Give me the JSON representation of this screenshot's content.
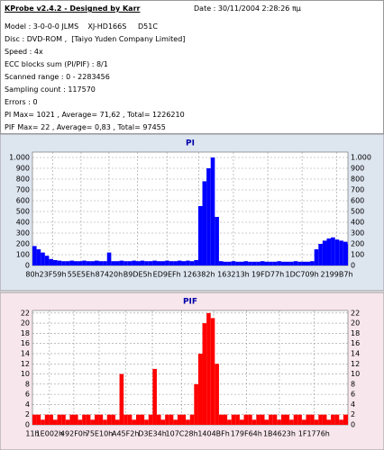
{
  "header": {
    "title": "KProbe v2.4.2 - Designed by Karr",
    "date": "Date : 30/11/2004 2:28:26 πμ"
  },
  "info": [
    "Model : 3-0-0-0 JLMS    XJ-HD166S     D51C",
    "Disc : DVD-ROM ,  [Taiyo Yuden Company Limited]",
    "Speed : 4x",
    "ECC blocks sum (PI/PIF) : 8/1",
    "Scanned range : 0 - 2283456",
    "Sampling count : 117570",
    "Errors : 0",
    "PI Max= 1021 , Average= 71,62 , Total= 1226210",
    "PIF Max= 22 , Average= 0,83 , Total= 97455"
  ],
  "chart_data": [
    {
      "type": "bar",
      "title": "PI",
      "color": "#0000ff",
      "grid": true,
      "x": [
        0,
        30000,
        60000,
        90000,
        120000,
        150000,
        180000,
        210000,
        240000,
        270000,
        300000,
        330000,
        360000,
        390000,
        420000,
        450000,
        480000,
        510000,
        540000,
        570000,
        600000,
        630000,
        660000,
        690000,
        720000,
        750000,
        780000,
        810000,
        840000,
        870000,
        900000,
        930000,
        960000,
        990000,
        1020000,
        1050000,
        1080000,
        1110000,
        1140000,
        1170000,
        1200000,
        1230000,
        1260000,
        1290000,
        1320000,
        1350000,
        1380000,
        1410000,
        1440000,
        1470000,
        1500000,
        1530000,
        1560000,
        1590000,
        1620000,
        1650000,
        1680000,
        1710000,
        1740000,
        1770000,
        1800000,
        1830000,
        1860000,
        1890000,
        1920000,
        1950000,
        1980000,
        2010000,
        2040000,
        2070000,
        2100000,
        2130000,
        2160000,
        2190000,
        2220000,
        2250000,
        2280000
      ],
      "values": [
        180,
        150,
        120,
        90,
        60,
        50,
        45,
        40,
        40,
        45,
        40,
        40,
        45,
        40,
        40,
        45,
        40,
        40,
        120,
        40,
        40,
        45,
        40,
        40,
        45,
        40,
        45,
        40,
        40,
        45,
        40,
        40,
        45,
        40,
        40,
        45,
        40,
        45,
        40,
        50,
        550,
        780,
        900,
        1000,
        450,
        40,
        35,
        35,
        40,
        35,
        35,
        40,
        35,
        35,
        35,
        40,
        35,
        35,
        35,
        40,
        35,
        35,
        35,
        40,
        35,
        35,
        35,
        40,
        150,
        200,
        230,
        250,
        260,
        240,
        230,
        220,
        200
      ],
      "xlim": [
        0,
        2283456
      ],
      "xticks": [
        {
          "value": 128,
          "label": "80h"
        },
        {
          "value": 147289,
          "label": "23F59h"
        },
        {
          "value": 351838,
          "label": "55E5Eh"
        },
        {
          "value": 554016,
          "label": "87420h"
        },
        {
          "value": 761317,
          "label": "B9DE5h"
        },
        {
          "value": 973295,
          "label": "ED9EFh"
        },
        {
          "value": 1205122,
          "label": "126382h"
        },
        {
          "value": 1454611,
          "label": "163213h"
        },
        {
          "value": 1703287,
          "label": "19FD77h"
        },
        {
          "value": 1951497,
          "label": "1DC709h"
        },
        {
          "value": 2202039,
          "label": "2199B7h"
        }
      ],
      "ylim": [
        0,
        1050
      ],
      "yticks": [
        0,
        100,
        200,
        300,
        400,
        500,
        600,
        700,
        800,
        900,
        {
          "value": 1000,
          "label": "1.000"
        }
      ]
    },
    {
      "type": "bar",
      "title": "PIF",
      "color": "#ff0000",
      "grid": true,
      "x": [
        0,
        30000,
        60000,
        90000,
        120000,
        150000,
        180000,
        210000,
        240000,
        270000,
        300000,
        330000,
        360000,
        390000,
        420000,
        450000,
        480000,
        510000,
        540000,
        570000,
        600000,
        630000,
        660000,
        690000,
        720000,
        750000,
        780000,
        810000,
        840000,
        870000,
        900000,
        930000,
        960000,
        990000,
        1020000,
        1050000,
        1080000,
        1110000,
        1140000,
        1170000,
        1200000,
        1230000,
        1260000,
        1290000,
        1320000,
        1350000,
        1380000,
        1410000,
        1440000,
        1470000,
        1500000,
        1530000,
        1560000,
        1590000,
        1620000,
        1650000,
        1680000,
        1710000,
        1740000,
        1770000,
        1800000,
        1830000,
        1860000,
        1890000,
        1920000,
        1950000,
        1980000,
        2010000,
        2040000,
        2070000,
        2100000,
        2130000,
        2160000,
        2190000,
        2220000,
        2250000,
        2280000
      ],
      "values": [
        2,
        2,
        1,
        2,
        2,
        1,
        2,
        2,
        1,
        2,
        2,
        1,
        2,
        2,
        1,
        2,
        2,
        1,
        2,
        2,
        1,
        10,
        2,
        2,
        1,
        2,
        2,
        1,
        2,
        11,
        2,
        1,
        2,
        2,
        1,
        2,
        2,
        1,
        2,
        8,
        14,
        20,
        22,
        21,
        12,
        2,
        2,
        1,
        2,
        2,
        1,
        2,
        2,
        1,
        2,
        2,
        1,
        2,
        2,
        1,
        2,
        2,
        1,
        2,
        2,
        1,
        2,
        2,
        1,
        2,
        2,
        1,
        2,
        2,
        1,
        2,
        2
      ],
      "xlim": [
        0,
        2283456
      ],
      "xticks": [
        {
          "value": 17,
          "label": "11h"
        },
        {
          "value": 122882,
          "label": "1E002h"
        },
        {
          "value": 299760,
          "label": "492F0h"
        },
        {
          "value": 482832,
          "label": "75E10h"
        },
        {
          "value": 673266,
          "label": "A45F2h"
        },
        {
          "value": 867892,
          "label": "D3E34h"
        },
        {
          "value": 1080360,
          "label": "107C28h"
        },
        {
          "value": 1311935,
          "label": "1404BFh"
        },
        {
          "value": 1548132,
          "label": "179F64h"
        },
        {
          "value": 1787427,
          "label": "1B4623h"
        },
        {
          "value": 2037622,
          "label": "1F1776h"
        }
      ],
      "ylim": [
        0,
        22.5
      ],
      "yticks": [
        0,
        2,
        4,
        6,
        8,
        10,
        12,
        14,
        16,
        18,
        20,
        22
      ]
    }
  ]
}
